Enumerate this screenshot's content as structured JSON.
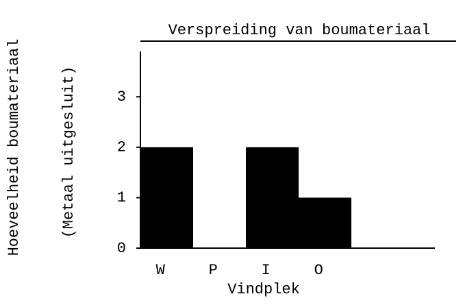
{
  "chart_data": {
    "type": "bar",
    "title": "Verspreiding van boumateriaal",
    "ylabel": "Hoeveelheid boumateriaal",
    "ylabel_note": "(Metaal uitgesluit)",
    "xlabel": "Vindplek",
    "categories": [
      "W",
      "P",
      "I",
      "O"
    ],
    "values": [
      2,
      0,
      2,
      1
    ],
    "color": "#000000",
    "ylim": [
      0,
      3.9
    ],
    "yticks": [
      0,
      1,
      2,
      3
    ],
    "grid": false
  }
}
